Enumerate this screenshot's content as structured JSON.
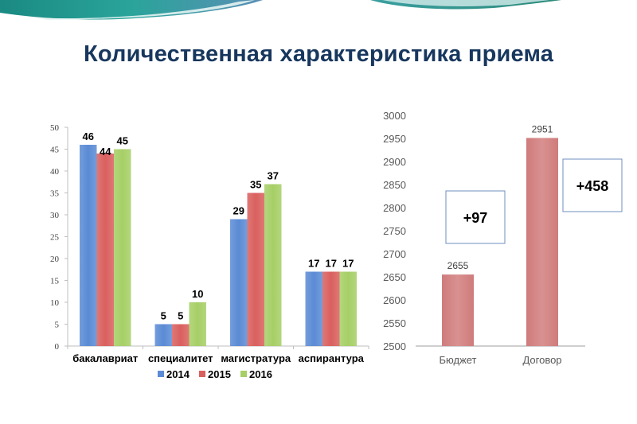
{
  "title": "Количественная характеристика приема",
  "colors": {
    "title": "#17375e",
    "series_2014": "#5b8bd5",
    "series_2015": "#d9605e",
    "series_2016": "#a6cf66",
    "right_bars": "#d99191",
    "box_border": "#6f8fbf",
    "axis": "#bfbfbf"
  },
  "chart_data": [
    {
      "type": "bar",
      "title": "",
      "xlabel": "",
      "ylabel": "",
      "categories": [
        "бакалавриат",
        "специалитет",
        "магистратура",
        "аспирантура"
      ],
      "series": [
        {
          "name": "2014",
          "values": [
            46,
            5,
            29,
            17
          ]
        },
        {
          "name": "2015",
          "values": [
            44,
            5,
            35,
            17
          ]
        },
        {
          "name": "2016",
          "values": [
            45,
            10,
            37,
            17
          ]
        }
      ],
      "ylim": [
        0,
        50
      ],
      "yticks": [
        "0",
        "5",
        "10",
        "15",
        "20",
        "25",
        "30",
        "35",
        "40",
        "45",
        "50"
      ],
      "legend": "bottom",
      "grid": false
    },
    {
      "type": "bar",
      "title": "",
      "xlabel": "",
      "ylabel": "",
      "categories": [
        "Бюджет",
        "Договор"
      ],
      "values": [
        2655,
        2951
      ],
      "ylim": [
        2500,
        3000
      ],
      "yticks": [
        "2500",
        "2550",
        "2600",
        "2650",
        "2700",
        "2750",
        "2800",
        "2850",
        "2900",
        "2950",
        "3000"
      ],
      "annotations": [
        "+97",
        "+458"
      ],
      "grid": false
    }
  ]
}
